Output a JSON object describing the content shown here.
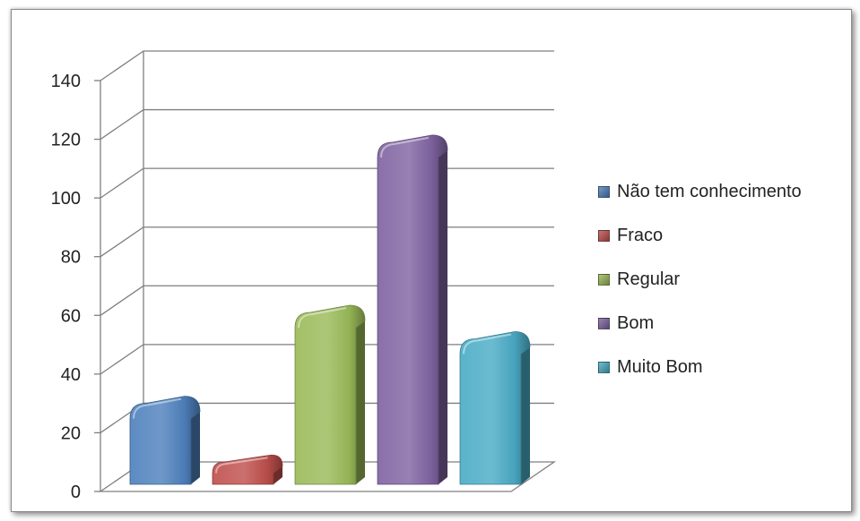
{
  "chart_data": {
    "type": "bar",
    "categories": [
      "Não tem conhecimento",
      "Fraco",
      "Regular",
      "Bom",
      "Muito Bom"
    ],
    "values": [
      30,
      10,
      61,
      119,
      52
    ],
    "colors": [
      "#4f81bd",
      "#c0504d",
      "#9bbb59",
      "#8064a2",
      "#4bacc6"
    ],
    "ylim": [
      0,
      140
    ],
    "yticks": [
      0,
      20,
      40,
      60,
      80,
      100,
      120,
      140
    ],
    "grid": true,
    "legend_position": "right",
    "style": "3d-cylinder"
  }
}
